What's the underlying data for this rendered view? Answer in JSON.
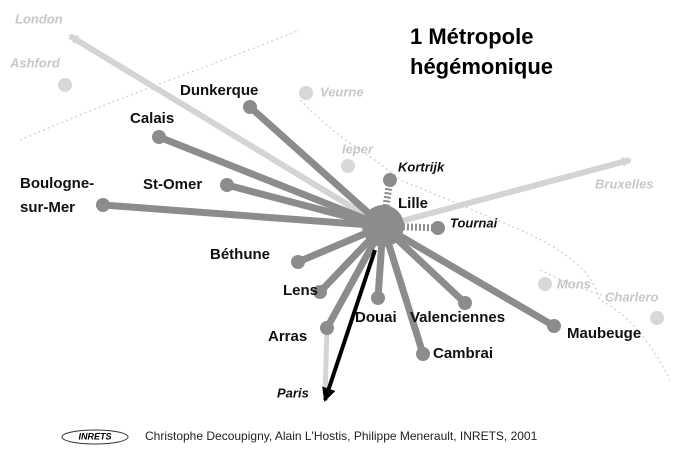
{
  "title": {
    "lines": [
      "1 Métropole",
      "hégémonique"
    ]
  },
  "hub": {
    "label": "Lille"
  },
  "cities": [
    {
      "label": "Dunkerque"
    },
    {
      "label": "Calais"
    },
    {
      "label": "St-Omer"
    },
    {
      "label": [
        "Boulogne-",
        "sur-Mer"
      ]
    },
    {
      "label": "Béthune"
    },
    {
      "label": "Lens"
    },
    {
      "label": "Arras"
    },
    {
      "label": "Douai"
    },
    {
      "label": "Valenciennes"
    },
    {
      "label": "Cambrai"
    },
    {
      "label": "Maubeuge"
    }
  ],
  "near": [
    {
      "label": "Kortrijk"
    },
    {
      "label": "Tournai"
    }
  ],
  "foreign": [
    {
      "label": "London"
    },
    {
      "label": "Ashford"
    },
    {
      "label": "Veurne"
    },
    {
      "label": "Ieper"
    },
    {
      "label": "Bruxelles"
    },
    {
      "label": "Mons"
    },
    {
      "label": "Charlero"
    }
  ],
  "paris": {
    "label": "Paris"
  },
  "footer": {
    "logo": "INRETS",
    "credit": "Christophe Decoupigny, Alain L'Hostis, Philippe Menerault, INRETS, 2001"
  }
}
